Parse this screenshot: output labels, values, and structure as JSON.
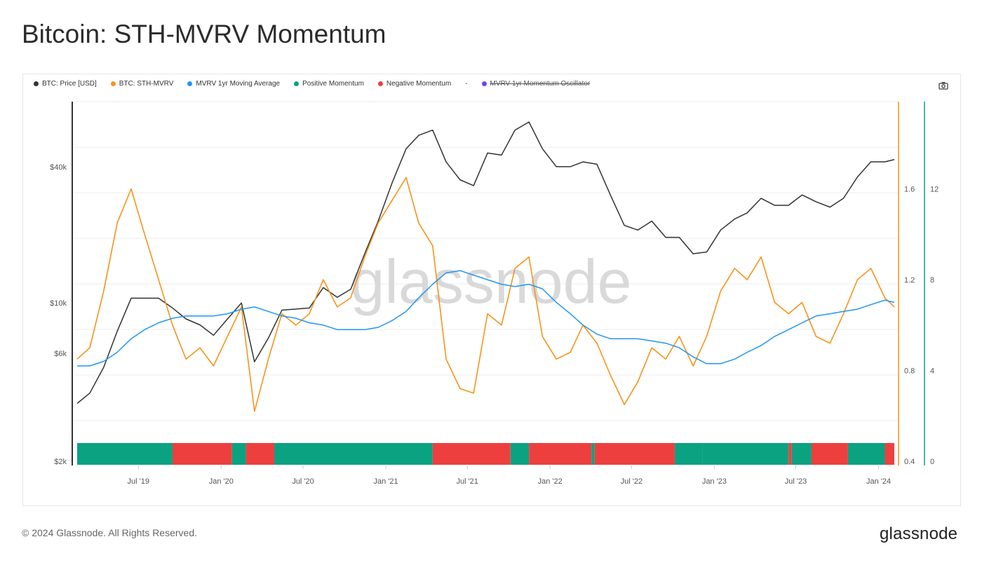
{
  "title": "Bitcoin: STH-MVRV Momentum",
  "legend": [
    {
      "label": "BTC: Price [USD]",
      "color": "#333333"
    },
    {
      "label": "BTC: STH-MVRV",
      "color": "#f7931a"
    },
    {
      "label": "MVRV 1yr Moving Average",
      "color": "#2196f3"
    },
    {
      "label": "Positive Momentum",
      "color": "#0aa281"
    },
    {
      "label": "Negative Momentum",
      "color": "#ee3f3f"
    },
    {
      "label": "-",
      "color": ""
    },
    {
      "label": "MVRV 1yr Momentum Oscillator",
      "color": "#7b3fe4",
      "hidden": true
    }
  ],
  "watermark": "glassnode",
  "footer": "© 2024 Glassnode. All Rights Reserved.",
  "logo": "glassnode",
  "icons": {
    "camera": "camera-icon"
  },
  "chart_data": {
    "type": "line",
    "x_range": [
      "2019-02-15",
      "2024-02-05"
    ],
    "x_ticks": [
      {
        "date": "2019-07-01",
        "label": "Jul '19"
      },
      {
        "date": "2020-01-01",
        "label": "Jan '20"
      },
      {
        "date": "2020-07-01",
        "label": "Jul '20"
      },
      {
        "date": "2021-01-01",
        "label": "Jan '21"
      },
      {
        "date": "2021-07-01",
        "label": "Jul '21"
      },
      {
        "date": "2022-01-01",
        "label": "Jan '22"
      },
      {
        "date": "2022-07-01",
        "label": "Jul '22"
      },
      {
        "date": "2023-01-01",
        "label": "Jan '23"
      },
      {
        "date": "2023-07-01",
        "label": "Jul '23"
      },
      {
        "date": "2024-01-01",
        "label": "Jan '24"
      }
    ],
    "y_left": {
      "scale": "log",
      "range": [
        2000,
        100000
      ],
      "ticks": [
        {
          "v": 2000,
          "label": "$2k"
        },
        {
          "v": 6000,
          "label": "$6k"
        },
        {
          "v": 10000,
          "label": "$10k"
        },
        {
          "v": 40000,
          "label": "$40k"
        }
      ]
    },
    "y_right": {
      "scale": "linear",
      "range": [
        0.4,
        2.0
      ],
      "ticks": [
        0.4,
        0.8,
        1.2,
        1.6
      ]
    },
    "y_right2": {
      "scale": "linear",
      "range": [
        0,
        16
      ],
      "ticks": [
        0,
        4,
        8,
        12
      ]
    },
    "grid": true,
    "months": [
      "2019-02",
      "2019-03",
      "2019-04",
      "2019-05",
      "2019-06",
      "2019-07",
      "2019-08",
      "2019-09",
      "2019-10",
      "2019-11",
      "2019-12",
      "2020-01",
      "2020-02",
      "2020-03",
      "2020-04",
      "2020-05",
      "2020-06",
      "2020-07",
      "2020-08",
      "2020-09",
      "2020-10",
      "2020-11",
      "2020-12",
      "2021-01",
      "2021-02",
      "2021-03",
      "2021-04",
      "2021-05",
      "2021-06",
      "2021-07",
      "2021-08",
      "2021-09",
      "2021-10",
      "2021-11",
      "2021-12",
      "2022-01",
      "2022-02",
      "2022-03",
      "2022-04",
      "2022-05",
      "2022-06",
      "2022-07",
      "2022-08",
      "2022-09",
      "2022-10",
      "2022-11",
      "2022-12",
      "2023-01",
      "2023-02",
      "2023-03",
      "2023-04",
      "2023-05",
      "2023-06",
      "2023-07",
      "2023-08",
      "2023-09",
      "2023-10",
      "2023-11",
      "2023-12",
      "2024-01",
      "2024-02"
    ],
    "series": [
      {
        "name": "BTC: Price [USD]",
        "axis": "left",
        "color": "#333333",
        "values": [
          3600,
          4000,
          5200,
          7500,
          10500,
          10500,
          10500,
          9500,
          8500,
          8000,
          7200,
          8500,
          10000,
          5500,
          7000,
          9300,
          9400,
          9500,
          11700,
          10600,
          11500,
          16500,
          23000,
          34000,
          48000,
          55000,
          58000,
          42000,
          35000,
          33000,
          46000,
          45000,
          58000,
          63000,
          48000,
          40000,
          40000,
          42000,
          41000,
          30000,
          22000,
          21000,
          23000,
          19500,
          19500,
          16500,
          16800,
          21000,
          23500,
          25000,
          29000,
          27000,
          27000,
          30000,
          28000,
          26500,
          29000,
          36000,
          42000,
          42000,
          43000
        ]
      },
      {
        "name": "BTC: STH-MVRV",
        "axis": "right",
        "color": "#f7931a",
        "values": [
          0.85,
          0.9,
          1.15,
          1.45,
          1.6,
          1.4,
          1.2,
          1.0,
          0.85,
          0.9,
          0.82,
          0.95,
          1.08,
          0.62,
          0.85,
          1.05,
          1.0,
          1.05,
          1.2,
          1.08,
          1.12,
          1.3,
          1.45,
          1.55,
          1.65,
          1.45,
          1.35,
          0.85,
          0.72,
          0.7,
          1.05,
          1.0,
          1.25,
          1.3,
          0.95,
          0.85,
          0.88,
          1.0,
          0.92,
          0.78,
          0.65,
          0.75,
          0.9,
          0.85,
          0.95,
          0.82,
          0.95,
          1.15,
          1.25,
          1.2,
          1.3,
          1.1,
          1.05,
          1.1,
          0.95,
          0.92,
          1.05,
          1.2,
          1.25,
          1.12,
          1.08
        ]
      },
      {
        "name": "MVRV 1yr Moving Average",
        "axis": "right",
        "color": "#2196f3",
        "values": [
          0.82,
          0.82,
          0.84,
          0.88,
          0.94,
          0.98,
          1.01,
          1.03,
          1.04,
          1.04,
          1.04,
          1.05,
          1.07,
          1.08,
          1.06,
          1.04,
          1.03,
          1.01,
          1.0,
          0.98,
          0.98,
          0.98,
          0.99,
          1.02,
          1.06,
          1.12,
          1.18,
          1.23,
          1.24,
          1.22,
          1.2,
          1.18,
          1.17,
          1.18,
          1.16,
          1.1,
          1.05,
          1.0,
          0.96,
          0.94,
          0.94,
          0.94,
          0.93,
          0.92,
          0.9,
          0.86,
          0.83,
          0.83,
          0.85,
          0.88,
          0.91,
          0.95,
          0.98,
          1.01,
          1.04,
          1.05,
          1.06,
          1.07,
          1.09,
          1.11,
          1.1
        ]
      }
    ],
    "momentum": [
      {
        "from": "2019-02-15",
        "to": "2019-09-15",
        "state": "positive"
      },
      {
        "from": "2019-09-15",
        "to": "2020-01-25",
        "state": "negative"
      },
      {
        "from": "2020-01-25",
        "to": "2020-02-25",
        "state": "positive"
      },
      {
        "from": "2020-02-25",
        "to": "2020-04-28",
        "state": "negative"
      },
      {
        "from": "2020-04-28",
        "to": "2021-04-15",
        "state": "positive"
      },
      {
        "from": "2021-04-15",
        "to": "2021-10-05",
        "state": "negative"
      },
      {
        "from": "2021-10-05",
        "to": "2021-11-15",
        "state": "positive"
      },
      {
        "from": "2021-11-15",
        "to": "2022-04-03",
        "state": "negative"
      },
      {
        "from": "2022-04-03",
        "to": "2022-04-10",
        "state": "positive"
      },
      {
        "from": "2022-04-10",
        "to": "2022-10-05",
        "state": "negative"
      },
      {
        "from": "2022-10-05",
        "to": "2022-12-05",
        "state": "positive"
      },
      {
        "from": "2022-12-05",
        "to": "2023-06-15",
        "state": "positive"
      },
      {
        "from": "2023-06-15",
        "to": "2023-06-22",
        "state": "negative"
      },
      {
        "from": "2023-06-22",
        "to": "2023-08-05",
        "state": "positive"
      },
      {
        "from": "2023-08-05",
        "to": "2023-10-25",
        "state": "negative"
      },
      {
        "from": "2023-10-25",
        "to": "2024-01-15",
        "state": "positive"
      },
      {
        "from": "2024-01-15",
        "to": "2024-02-05",
        "state": "negative"
      }
    ]
  }
}
